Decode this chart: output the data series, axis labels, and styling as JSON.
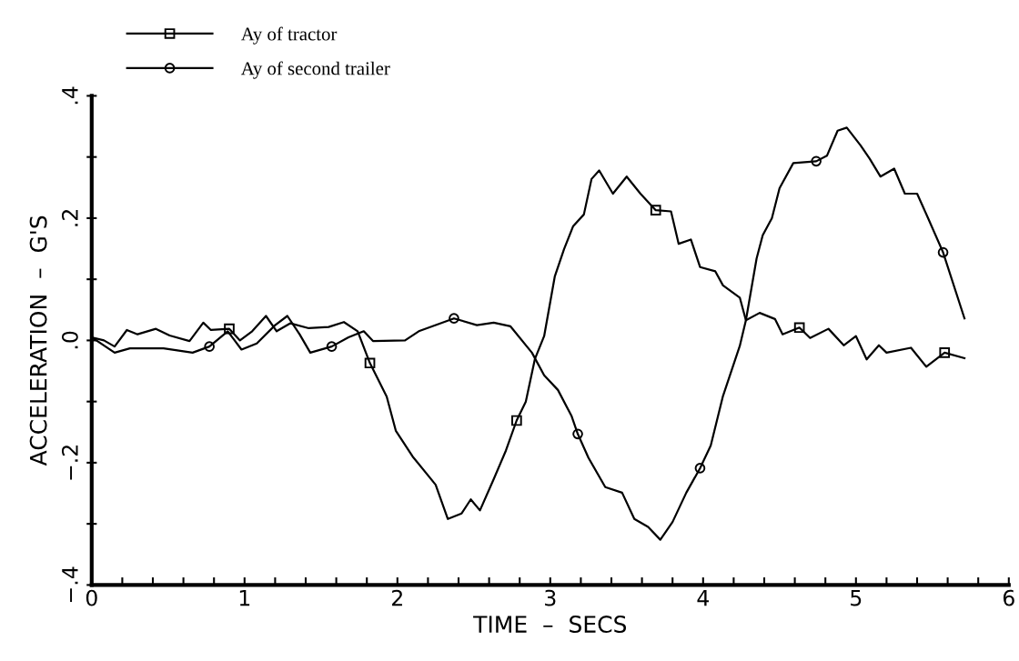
{
  "chart_data": {
    "type": "line",
    "xlabel": "TIME  –  SECS",
    "ylabel": "ACCELERATION  –  G'S",
    "xlim": [
      0,
      6
    ],
    "ylim": [
      -0.4,
      0.4
    ],
    "xticks": [
      0,
      1,
      2,
      3,
      4,
      5,
      6,
      {
        "value": 0.2,
        "label": null
      },
      {
        "value": 0.4,
        "label": null
      },
      {
        "value": 0.6,
        "label": null
      },
      {
        "value": 0.8,
        "label": null
      },
      {
        "value": 1.2,
        "label": null
      },
      {
        "value": 1.4,
        "label": null
      },
      {
        "value": 1.6,
        "label": null
      },
      {
        "value": 1.8,
        "label": null
      },
      {
        "value": 2.2,
        "label": null
      },
      {
        "value": 2.4,
        "label": null
      },
      {
        "value": 2.6,
        "label": null
      },
      {
        "value": 2.8,
        "label": null
      },
      {
        "value": 3.2,
        "label": null
      },
      {
        "value": 3.4,
        "label": null
      },
      {
        "value": 3.6,
        "label": null
      },
      {
        "value": 3.8,
        "label": null
      },
      {
        "value": 4.2,
        "label": null
      },
      {
        "value": 4.4,
        "label": null
      },
      {
        "value": 4.6,
        "label": null
      },
      {
        "value": 4.8,
        "label": null
      },
      {
        "value": 5.2,
        "label": null
      },
      {
        "value": 5.4,
        "label": null
      },
      {
        "value": 5.6,
        "label": null
      },
      {
        "value": 5.8,
        "label": null
      }
    ],
    "yticks": [
      {
        "value": -0.4,
        "label": "−.4"
      },
      {
        "value": -0.2,
        "label": "−.2"
      },
      {
        "value": 0,
        "label": ".0"
      },
      {
        "value": 0.2,
        "label": ".2"
      },
      {
        "value": 0.4,
        "label": ".4"
      },
      {
        "value": -0.3,
        "label": null
      },
      {
        "value": -0.1,
        "label": null
      },
      {
        "value": 0.1,
        "label": null
      },
      {
        "value": 0.3,
        "label": null
      }
    ],
    "grid": false,
    "legend": "top left",
    "line_style": "solid",
    "series": [
      {
        "type": "scatter",
        "name": "Ay of tractor",
        "color": "#000000",
        "marker": "square",
        "x": [
          0.9,
          1.82,
          2.78,
          3.69,
          4.63,
          5.58
        ],
        "values": [
          0.019,
          -0.037,
          -0.131,
          0.213,
          0.021,
          -0.02
        ]
      },
      {
        "type": "scatter",
        "name": "Ay of second trailer",
        "color": "#000000",
        "marker": "circle",
        "x": [
          0.77,
          1.57,
          2.37,
          3.18,
          3.98,
          4.74,
          5.57
        ],
        "values": [
          -0.01,
          -0.01,
          0.036,
          -0.153,
          -0.209,
          0.293,
          0.144
        ]
      },
      {
        "color": "#000000",
        "x": [
          0,
          0.08,
          0.15,
          0.23,
          0.3,
          0.42,
          0.51,
          0.64,
          0.73,
          0.78,
          0.9,
          0.97,
          1.05,
          1.14,
          1.21,
          1.3,
          1.42,
          1.55,
          1.65,
          1.74,
          1.82,
          1.93,
          1.99,
          2.1,
          2.25,
          2.33,
          2.42,
          2.48,
          2.54,
          2.63,
          2.71,
          2.78,
          2.84,
          2.9,
          2.96,
          3.03,
          3.09,
          3.15,
          3.22,
          3.27,
          3.32,
          3.41,
          3.5,
          3.59,
          3.69,
          3.79,
          3.84,
          3.92,
          3.98,
          4.08,
          4.13,
          4.24,
          4.28,
          4.37,
          4.47,
          4.52,
          4.63,
          4.7,
          4.82,
          4.92,
          5.0,
          5.07,
          5.15,
          5.2,
          5.36,
          5.46,
          5.58,
          5.71
        ],
        "values": [
          0.005,
          0.0,
          -0.01,
          0.017,
          0.01,
          0.019,
          0.008,
          -0.001,
          0.029,
          0.017,
          0.019,
          0.0,
          0.015,
          0.04,
          0.015,
          0.028,
          0.02,
          0.022,
          0.03,
          0.015,
          -0.037,
          -0.092,
          -0.148,
          -0.19,
          -0.236,
          -0.292,
          -0.283,
          -0.26,
          -0.278,
          -0.227,
          -0.18,
          -0.131,
          -0.1,
          -0.03,
          0.007,
          0.105,
          0.149,
          0.187,
          0.206,
          0.264,
          0.278,
          0.24,
          0.268,
          0.24,
          0.213,
          0.211,
          0.158,
          0.165,
          0.12,
          0.113,
          0.09,
          0.07,
          0.033,
          0.045,
          0.035,
          0.01,
          0.021,
          0.004,
          0.019,
          -0.008,
          0.007,
          -0.031,
          -0.008,
          -0.02,
          -0.012,
          -0.043,
          -0.02,
          -0.029
        ]
      },
      {
        "color": "#000000",
        "x": [
          0,
          0.15,
          0.25,
          0.47,
          0.66,
          0.77,
          0.89,
          0.98,
          1.08,
          1.2,
          1.28,
          1.36,
          1.43,
          1.57,
          1.68,
          1.78,
          1.84,
          2.05,
          2.14,
          2.37,
          2.52,
          2.63,
          2.74,
          2.88,
          2.96,
          3.05,
          3.14,
          3.18,
          3.25,
          3.36,
          3.47,
          3.55,
          3.64,
          3.72,
          3.8,
          3.89,
          3.98,
          4.05,
          4.13,
          4.24,
          4.28,
          4.35,
          4.39,
          4.45,
          4.5,
          4.59,
          4.74,
          4.81,
          4.88,
          4.94,
          5.03,
          5.09,
          5.16,
          5.25,
          5.32,
          5.4,
          5.47,
          5.57,
          5.71
        ],
        "values": [
          0.005,
          -0.02,
          -0.013,
          -0.013,
          -0.02,
          -0.01,
          0.015,
          -0.015,
          -0.005,
          0.025,
          0.04,
          0.01,
          -0.02,
          -0.01,
          0.005,
          0.015,
          -0.001,
          0.0,
          0.015,
          0.036,
          0.025,
          0.029,
          0.023,
          -0.02,
          -0.057,
          -0.081,
          -0.124,
          -0.153,
          -0.192,
          -0.24,
          -0.249,
          -0.292,
          -0.305,
          -0.326,
          -0.297,
          -0.249,
          -0.209,
          -0.172,
          -0.091,
          -0.009,
          0.033,
          0.134,
          0.172,
          0.2,
          0.249,
          0.29,
          0.293,
          0.302,
          0.343,
          0.348,
          0.319,
          0.297,
          0.268,
          0.281,
          0.24,
          0.24,
          0.201,
          0.144,
          0.036
        ]
      }
    ]
  }
}
